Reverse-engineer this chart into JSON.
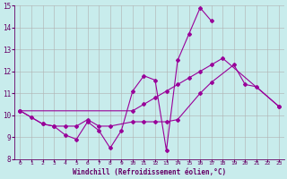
{
  "xlabel": "Windchill (Refroidissement éolien,°C)",
  "background_color": "#c8ecec",
  "grid_color": "#b0b0b0",
  "line_color": "#990099",
  "x": [
    0,
    1,
    2,
    3,
    4,
    5,
    6,
    7,
    8,
    9,
    10,
    11,
    12,
    13,
    14,
    15,
    16,
    17,
    18,
    19,
    20,
    21,
    22,
    23
  ],
  "curve1_x": [
    0,
    1,
    2,
    3,
    4,
    5,
    6,
    7,
    8,
    9,
    10,
    11,
    12,
    13,
    14,
    15,
    16,
    17
  ],
  "curve1_y": [
    10.2,
    9.9,
    9.6,
    9.5,
    9.1,
    8.9,
    9.7,
    9.3,
    8.5,
    9.3,
    11.1,
    11.8,
    11.6,
    8.4,
    12.5,
    13.7,
    14.9,
    14.3
  ],
  "curve2_x": [
    0,
    2,
    3,
    4,
    5,
    6,
    7,
    8,
    10,
    11,
    12,
    13,
    14,
    16,
    17,
    19,
    20,
    21,
    23
  ],
  "curve2_y": [
    10.2,
    9.6,
    9.5,
    9.5,
    9.5,
    9.8,
    9.5,
    9.5,
    9.7,
    9.7,
    9.7,
    9.7,
    9.8,
    11.0,
    11.5,
    12.3,
    11.4,
    11.3,
    10.4
  ],
  "curve3_x": [
    0,
    10,
    11,
    12,
    13,
    14,
    15,
    16,
    17,
    18,
    23
  ],
  "curve3_y": [
    10.2,
    10.2,
    10.5,
    10.8,
    11.1,
    11.4,
    11.7,
    12.0,
    12.3,
    12.6,
    10.4
  ],
  "ylim": [
    8,
    15
  ],
  "xlim": [
    -0.5,
    23.5
  ]
}
